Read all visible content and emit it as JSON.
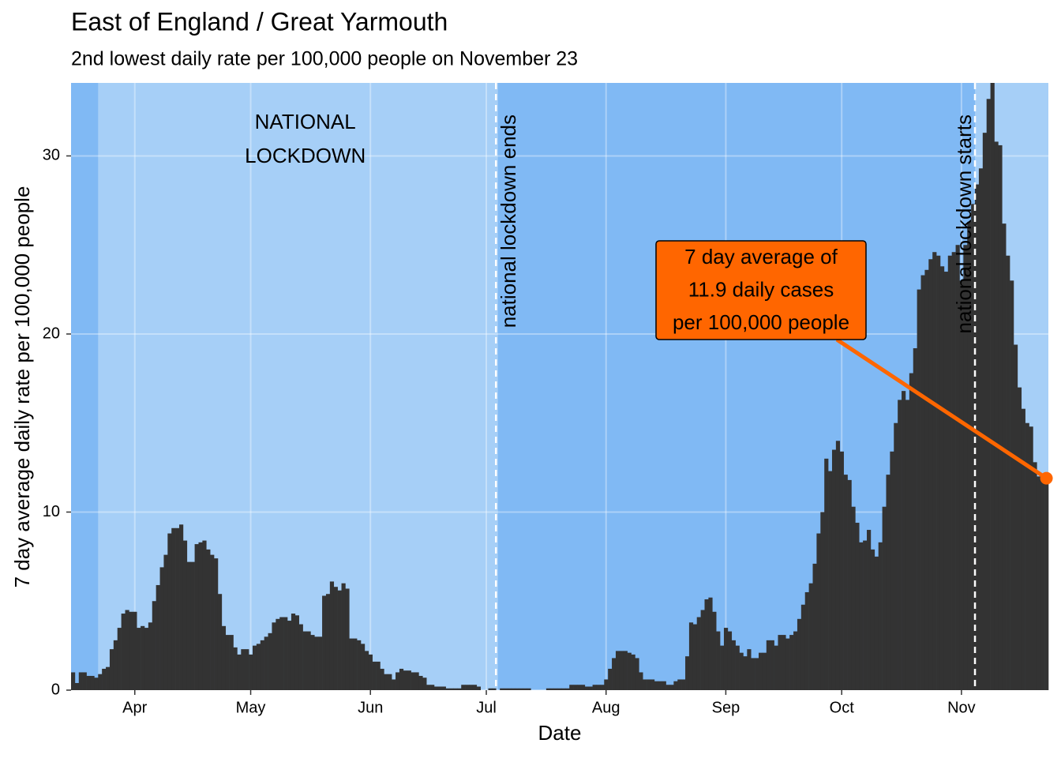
{
  "chart_data": {
    "type": "bar",
    "title": "East of England / Great Yarmouth",
    "subtitle": "2nd lowest daily rate per 100,000 people on November 23",
    "x_label": "Date",
    "y_label": "7 day average daily rate per 100,000 people",
    "x": [
      76,
      77,
      78,
      79,
      80,
      81,
      82,
      83,
      84,
      85,
      86,
      87,
      88,
      89,
      90,
      91,
      92,
      93,
      94,
      95,
      96,
      97,
      98,
      99,
      100,
      101,
      102,
      103,
      104,
      105,
      106,
      107,
      108,
      109,
      110,
      111,
      112,
      113,
      114,
      115,
      116,
      117,
      118,
      119,
      120,
      121,
      122,
      123,
      124,
      125,
      126,
      127,
      128,
      129,
      130,
      131,
      132,
      133,
      134,
      135,
      136,
      137,
      138,
      139,
      140,
      141,
      142,
      143,
      144,
      145,
      146,
      147,
      148,
      149,
      150,
      151,
      152,
      153,
      154,
      155,
      156,
      157,
      158,
      159,
      160,
      161,
      162,
      163,
      164,
      165,
      166,
      167,
      168,
      169,
      170,
      171,
      172,
      173,
      174,
      175,
      176,
      177,
      178,
      179,
      180,
      181,
      182,
      183,
      184,
      185,
      186,
      187,
      188,
      189,
      190,
      191,
      192,
      193,
      194,
      195,
      196,
      197,
      198,
      199,
      200,
      201,
      202,
      203,
      204,
      205,
      206,
      207,
      208,
      209,
      210,
      211,
      212,
      213,
      214,
      215,
      216,
      217,
      218,
      219,
      220,
      221,
      222,
      223,
      224,
      225,
      226,
      227,
      228,
      229,
      230,
      231,
      232,
      233,
      234,
      235,
      236,
      237,
      238,
      239,
      240,
      241,
      242,
      243,
      244,
      245,
      246,
      247,
      248,
      249,
      250,
      251,
      252,
      253,
      254,
      255,
      256,
      257,
      258,
      259,
      260,
      261,
      262,
      263,
      264,
      265,
      266,
      267,
      268,
      269,
      270,
      271,
      272,
      273,
      274,
      275,
      276,
      277,
      278,
      279,
      280,
      281,
      282,
      283,
      284,
      285,
      286,
      287,
      288,
      289,
      290,
      291,
      292,
      293,
      294,
      295,
      296,
      297,
      298,
      299,
      300,
      301,
      302,
      303,
      304,
      305,
      306,
      307,
      308,
      309,
      310,
      311,
      312,
      313,
      314,
      315,
      316,
      317,
      318,
      319,
      320,
      321,
      322,
      323,
      324,
      325,
      326,
      327,
      328
    ],
    "values": [
      1.0,
      0.4,
      1.0,
      1.0,
      0.8,
      0.8,
      0.7,
      0.9,
      1.2,
      1.3,
      2.3,
      2.8,
      3.5,
      4.3,
      4.5,
      4.4,
      4.4,
      3.5,
      3.6,
      3.5,
      3.8,
      5.0,
      5.9,
      6.9,
      7.6,
      8.8,
      9.1,
      9.1,
      9.3,
      8.4,
      7.2,
      7.2,
      8.2,
      8.3,
      8.4,
      7.9,
      7.6,
      7.4,
      5.4,
      3.6,
      3.1,
      3.1,
      2.4,
      2.0,
      2.3,
      2.3,
      2.0,
      2.5,
      2.6,
      2.8,
      3.0,
      3.2,
      3.8,
      4.0,
      4.1,
      4.1,
      3.9,
      4.3,
      4.2,
      3.7,
      3.3,
      3.3,
      3.1,
      3.0,
      3.0,
      5.3,
      5.4,
      6.1,
      5.8,
      5.6,
      6.0,
      5.7,
      2.9,
      2.9,
      2.8,
      2.6,
      2.2,
      2.0,
      1.6,
      1.6,
      1.2,
      0.9,
      0.9,
      0.6,
      1.0,
      1.2,
      1.1,
      1.1,
      1.0,
      1.0,
      0.8,
      0.7,
      0.3,
      0.3,
      0.2,
      0.2,
      0.2,
      0.1,
      0.1,
      0.1,
      0.1,
      0.3,
      0.3,
      0.3,
      0.3,
      0.2,
      0.0,
      0.0,
      0.1,
      0.1,
      0.0,
      0.1,
      0.1,
      0.1,
      0.1,
      0.1,
      0.1,
      0.1,
      0.1,
      0.0,
      0.0,
      0.0,
      0.0,
      0.1,
      0.1,
      0.1,
      0.1,
      0.1,
      0.1,
      0.3,
      0.3,
      0.3,
      0.3,
      0.2,
      0.2,
      0.3,
      0.3,
      0.3,
      0.6,
      1.2,
      1.8,
      2.2,
      2.2,
      2.2,
      2.1,
      2.0,
      1.8,
      1.0,
      0.6,
      0.6,
      0.6,
      0.5,
      0.5,
      0.5,
      0.3,
      0.3,
      0.5,
      0.6,
      0.6,
      1.9,
      3.8,
      3.7,
      4.1,
      4.5,
      5.1,
      5.2,
      4.4,
      3.3,
      2.5,
      3.5,
      3.3,
      2.8,
      2.5,
      2.1,
      1.9,
      2.3,
      1.8,
      1.8,
      2.1,
      2.1,
      2.8,
      2.8,
      2.5,
      3.1,
      3.1,
      2.9,
      3.1,
      3.3,
      4.0,
      4.8,
      5.5,
      6.0,
      7.1,
      8.8,
      10.0,
      13.0,
      12.3,
      13.5,
      14.0,
      13.4,
      12.1,
      11.8,
      10.3,
      9.4,
      8.3,
      8.4,
      9.0,
      7.9,
      7.5,
      8.3,
      10.3,
      12.1,
      13.4,
      15.0,
      16.3,
      16.8,
      16.3,
      17.8,
      19.2,
      22.5,
      23.3,
      23.6,
      24.2,
      24.6,
      24.4,
      23.8,
      23.5,
      24.4,
      24.6,
      25.0,
      23.0,
      25.0,
      26.3,
      27.3,
      28.4,
      29.3,
      31.3,
      33.2,
      34.1,
      30.8,
      30.6,
      26.2,
      24.4,
      23.0,
      19.4,
      17.0,
      15.8,
      15.0,
      14.8,
      12.8,
      12.0,
      11.9,
      11.9
    ],
    "color": "#333333",
    "background_color": "#80b9f4",
    "xlim": [
      75.5,
      328.5
    ],
    "xticks": [
      {
        "value": 92,
        "label": "Apr"
      },
      {
        "value": 122,
        "label": "May"
      },
      {
        "value": 153,
        "label": "Jun"
      },
      {
        "value": 183,
        "label": "Jul"
      },
      {
        "value": 214,
        "label": "Aug"
      },
      {
        "value": 245,
        "label": "Sep"
      },
      {
        "value": 275,
        "label": "Oct"
      },
      {
        "value": 306,
        "label": "Nov"
      }
    ],
    "ylim": [
      0,
      34.1
    ],
    "yticks": [
      0,
      10,
      20,
      30
    ],
    "grid": true,
    "shaded_regions": [
      {
        "start": 83,
        "end": 186,
        "color": "#a6cff7",
        "label_lines": [
          "NATIONAL",
          "LOCKDOWN"
        ]
      },
      {
        "start": 310,
        "end": 328.5,
        "color": "#a6cff7"
      }
    ],
    "vlines": [
      {
        "x": 186,
        "label": "national lockdown ends"
      },
      {
        "x": 310,
        "label": "national lockdown starts"
      }
    ],
    "annotation": {
      "lines": [
        "7 day average of",
        "11.9 daily cases",
        "per 100,000 people"
      ],
      "x": 328,
      "y": 11.9,
      "color": "#ff6600"
    }
  }
}
